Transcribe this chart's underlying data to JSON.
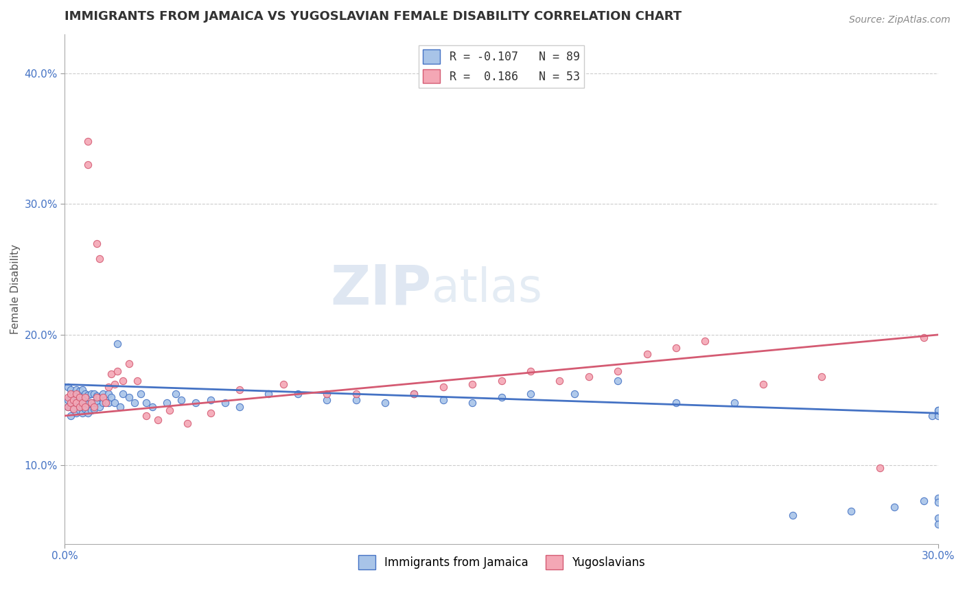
{
  "title": "IMMIGRANTS FROM JAMAICA VS YUGOSLAVIAN FEMALE DISABILITY CORRELATION CHART",
  "source": "Source: ZipAtlas.com",
  "xlabel": "",
  "ylabel": "Female Disability",
  "xlim": [
    0.0,
    0.3
  ],
  "ylim": [
    0.04,
    0.43
  ],
  "x_ticks": [
    0.0,
    0.3
  ],
  "y_ticks": [
    0.1,
    0.2,
    0.3,
    0.4
  ],
  "watermark": "ZIPatlas",
  "blue_line_start": 0.162,
  "blue_line_end": 0.14,
  "pink_line_start": 0.138,
  "pink_line_end": 0.2,
  "series": [
    {
      "label": "Immigrants from Jamaica",
      "R": -0.107,
      "N": 89,
      "color_scatter": "#a8c4e8",
      "color_line": "#4472c4",
      "x": [
        0.001,
        0.001,
        0.001,
        0.002,
        0.002,
        0.002,
        0.002,
        0.003,
        0.003,
        0.003,
        0.003,
        0.003,
        0.004,
        0.004,
        0.004,
        0.004,
        0.005,
        0.005,
        0.005,
        0.005,
        0.006,
        0.006,
        0.006,
        0.006,
        0.007,
        0.007,
        0.007,
        0.008,
        0.008,
        0.008,
        0.009,
        0.009,
        0.009,
        0.01,
        0.01,
        0.01,
        0.011,
        0.011,
        0.012,
        0.012,
        0.013,
        0.013,
        0.014,
        0.015,
        0.015,
        0.016,
        0.017,
        0.018,
        0.019,
        0.02,
        0.022,
        0.024,
        0.026,
        0.028,
        0.03,
        0.035,
        0.038,
        0.04,
        0.045,
        0.05,
        0.055,
        0.06,
        0.07,
        0.08,
        0.09,
        0.1,
        0.11,
        0.12,
        0.13,
        0.14,
        0.15,
        0.16,
        0.175,
        0.19,
        0.21,
        0.23,
        0.25,
        0.27,
        0.285,
        0.295,
        0.298,
        0.3,
        0.3,
        0.3,
        0.3,
        0.3,
        0.3,
        0.3,
        0.3
      ],
      "y": [
        0.15,
        0.145,
        0.16,
        0.138,
        0.145,
        0.152,
        0.158,
        0.143,
        0.15,
        0.155,
        0.148,
        0.155,
        0.14,
        0.148,
        0.153,
        0.158,
        0.142,
        0.148,
        0.153,
        0.157,
        0.14,
        0.145,
        0.152,
        0.158,
        0.143,
        0.148,
        0.155,
        0.14,
        0.147,
        0.154,
        0.142,
        0.148,
        0.155,
        0.143,
        0.148,
        0.155,
        0.148,
        0.153,
        0.145,
        0.152,
        0.148,
        0.155,
        0.15,
        0.148,
        0.155,
        0.152,
        0.148,
        0.193,
        0.145,
        0.155,
        0.152,
        0.148,
        0.155,
        0.148,
        0.145,
        0.148,
        0.155,
        0.15,
        0.148,
        0.15,
        0.148,
        0.145,
        0.155,
        0.155,
        0.15,
        0.15,
        0.148,
        0.155,
        0.15,
        0.148,
        0.152,
        0.155,
        0.155,
        0.165,
        0.148,
        0.148,
        0.062,
        0.065,
        0.068,
        0.073,
        0.138,
        0.14,
        0.142,
        0.138,
        0.142,
        0.075,
        0.072,
        0.06,
        0.055
      ]
    },
    {
      "label": "Yugoslavians",
      "R": 0.186,
      "N": 53,
      "color_scatter": "#f4a7b5",
      "color_line": "#d45a72",
      "x": [
        0.001,
        0.001,
        0.002,
        0.002,
        0.003,
        0.003,
        0.004,
        0.004,
        0.005,
        0.005,
        0.006,
        0.007,
        0.007,
        0.008,
        0.008,
        0.009,
        0.01,
        0.011,
        0.011,
        0.012,
        0.013,
        0.014,
        0.015,
        0.016,
        0.017,
        0.018,
        0.02,
        0.022,
        0.025,
        0.028,
        0.032,
        0.036,
        0.042,
        0.05,
        0.06,
        0.075,
        0.09,
        0.1,
        0.12,
        0.13,
        0.14,
        0.15,
        0.16,
        0.17,
        0.18,
        0.19,
        0.2,
        0.21,
        0.22,
        0.24,
        0.26,
        0.28,
        0.295
      ],
      "y": [
        0.145,
        0.152,
        0.148,
        0.155,
        0.143,
        0.15,
        0.148,
        0.155,
        0.145,
        0.152,
        0.148,
        0.145,
        0.152,
        0.348,
        0.33,
        0.148,
        0.145,
        0.152,
        0.27,
        0.258,
        0.152,
        0.148,
        0.16,
        0.17,
        0.162,
        0.172,
        0.165,
        0.178,
        0.165,
        0.138,
        0.135,
        0.142,
        0.132,
        0.14,
        0.158,
        0.162,
        0.155,
        0.155,
        0.155,
        0.16,
        0.162,
        0.165,
        0.172,
        0.165,
        0.168,
        0.172,
        0.185,
        0.19,
        0.195,
        0.162,
        0.168,
        0.098,
        0.198
      ]
    }
  ],
  "background_color": "#ffffff",
  "grid_color": "#cccccc",
  "title_fontsize": 13,
  "axis_label_fontsize": 11,
  "tick_fontsize": 11,
  "legend_fontsize": 12,
  "source_fontsize": 10
}
